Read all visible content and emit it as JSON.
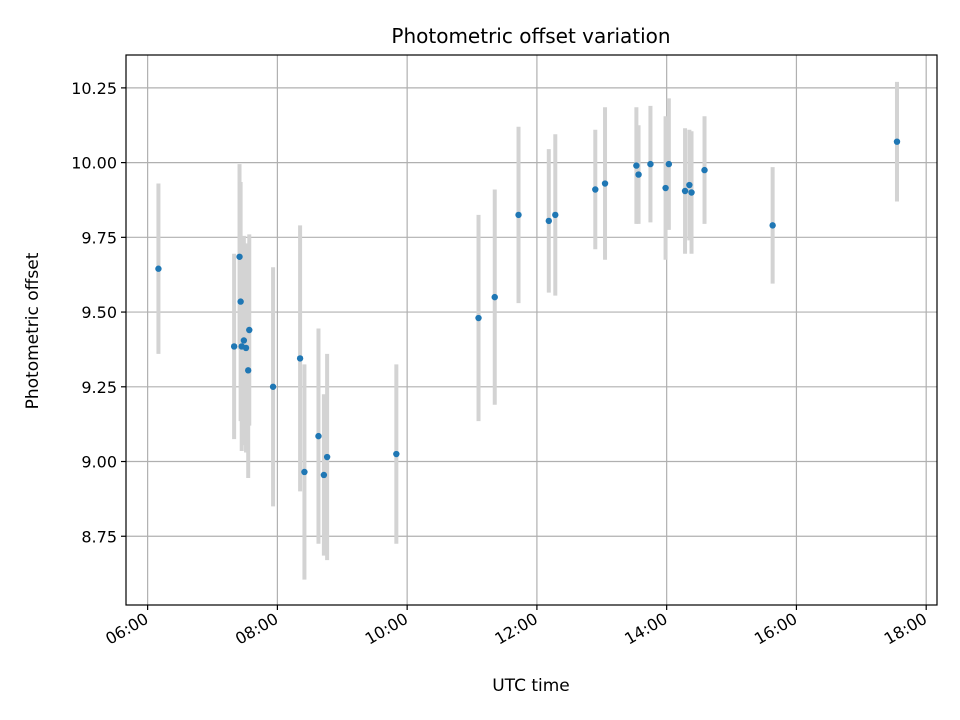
{
  "chart_data": {
    "type": "scatter",
    "title": "Photometric offset variation",
    "xlabel": "UTC time",
    "ylabel": "Photometric offset",
    "x_ticks": [
      "06:00",
      "08:00",
      "10:00",
      "12:00",
      "14:00",
      "16:00",
      "18:00"
    ],
    "y_ticks": [
      "8.75",
      "9.00",
      "9.25",
      "9.50",
      "9.75",
      "10.00",
      "10.25"
    ],
    "xlim": [
      "05:40",
      "18:10"
    ],
    "ylim": [
      8.52,
      10.36
    ],
    "grid": true,
    "colors": {
      "point": "#1f77b4",
      "errorbar": "#d3d3d3",
      "grid": "#b0b0b0"
    },
    "points": [
      {
        "x": "06:10",
        "y": 9.645,
        "err": 0.285
      },
      {
        "x": "07:20",
        "y": 9.385,
        "err": 0.31
      },
      {
        "x": "07:25",
        "y": 9.685,
        "err": 0.31
      },
      {
        "x": "07:26",
        "y": 9.535,
        "err": 0.4
      },
      {
        "x": "07:27",
        "y": 9.385,
        "err": 0.35
      },
      {
        "x": "07:29",
        "y": 9.405,
        "err": 0.35
      },
      {
        "x": "07:31",
        "y": 9.38,
        "err": 0.35
      },
      {
        "x": "07:33",
        "y": 9.305,
        "err": 0.36
      },
      {
        "x": "07:34",
        "y": 9.44,
        "err": 0.32
      },
      {
        "x": "07:56",
        "y": 9.25,
        "err": 0.4
      },
      {
        "x": "08:21",
        "y": 9.345,
        "err": 0.445
      },
      {
        "x": "08:25",
        "y": 8.965,
        "err": 0.36
      },
      {
        "x": "08:38",
        "y": 9.085,
        "err": 0.36
      },
      {
        "x": "08:43",
        "y": 8.955,
        "err": 0.27
      },
      {
        "x": "08:46",
        "y": 9.015,
        "err": 0.345
      },
      {
        "x": "09:50",
        "y": 9.025,
        "err": 0.3
      },
      {
        "x": "11:06",
        "y": 9.48,
        "err": 0.345
      },
      {
        "x": "11:21",
        "y": 9.55,
        "err": 0.36
      },
      {
        "x": "11:43",
        "y": 9.825,
        "err": 0.295
      },
      {
        "x": "12:11",
        "y": 9.805,
        "err": 0.24
      },
      {
        "x": "12:17",
        "y": 9.825,
        "err": 0.27
      },
      {
        "x": "12:54",
        "y": 9.91,
        "err": 0.2
      },
      {
        "x": "13:03",
        "y": 9.93,
        "err": 0.255
      },
      {
        "x": "13:32",
        "y": 9.99,
        "err": 0.195
      },
      {
        "x": "13:34",
        "y": 9.96,
        "err": 0.165
      },
      {
        "x": "13:45",
        "y": 9.995,
        "err": 0.195
      },
      {
        "x": "13:59",
        "y": 9.915,
        "err": 0.24
      },
      {
        "x": "14:02",
        "y": 9.995,
        "err": 0.22
      },
      {
        "x": "14:17",
        "y": 9.905,
        "err": 0.21
      },
      {
        "x": "14:21",
        "y": 9.925,
        "err": 0.185
      },
      {
        "x": "14:23",
        "y": 9.9,
        "err": 0.205
      },
      {
        "x": "14:35",
        "y": 9.975,
        "err": 0.18
      },
      {
        "x": "15:38",
        "y": 9.79,
        "err": 0.195
      },
      {
        "x": "17:33",
        "y": 10.07,
        "err": 0.2
      }
    ]
  }
}
